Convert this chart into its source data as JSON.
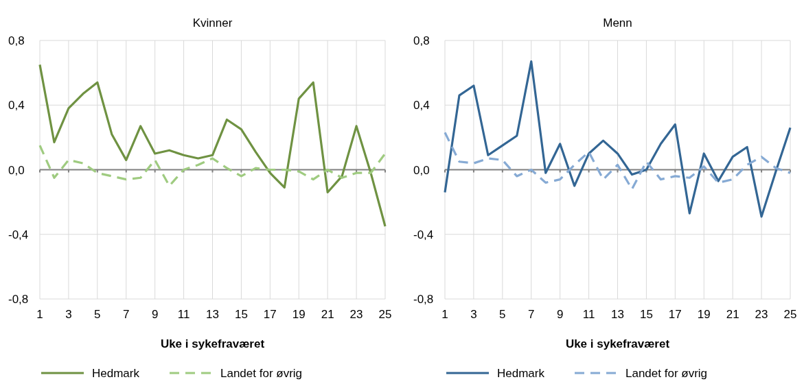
{
  "chart_data": [
    {
      "type": "line",
      "title": "Kvinner",
      "xlabel": "Uke i sykefraværet",
      "x": [
        1,
        2,
        3,
        4,
        5,
        6,
        7,
        8,
        9,
        10,
        11,
        12,
        13,
        14,
        15,
        16,
        17,
        18,
        19,
        20,
        21,
        22,
        23,
        24,
        25
      ],
      "xlim": [
        1,
        25
      ],
      "xticks": [
        1,
        3,
        5,
        7,
        9,
        11,
        13,
        15,
        17,
        19,
        21,
        23,
        25
      ],
      "ylim": [
        -0.8,
        0.8
      ],
      "yticks": [
        {
          "value": -0.8,
          "label": "-0,8"
        },
        {
          "value": -0.4,
          "label": "-0,4"
        },
        {
          "value": 0,
          "label": "0,0"
        },
        {
          "value": 0.4,
          "label": "0,4"
        },
        {
          "value": 0.8,
          "label": "0,8"
        }
      ],
      "grid": true,
      "legend": "bottom",
      "marker": "none",
      "series": [
        {
          "name": "Hedmark",
          "color": "#6f9242",
          "line_style": "solid",
          "values": [
            0.65,
            0.17,
            0.38,
            0.47,
            0.54,
            0.22,
            0.06,
            0.27,
            0.1,
            0.12,
            0.09,
            0.07,
            0.09,
            0.31,
            0.25,
            0.11,
            -0.02,
            -0.11,
            0.44,
            0.54,
            -0.14,
            -0.04,
            0.27,
            -0.02,
            -0.35
          ]
        },
        {
          "name": "Landet for øvrig",
          "color": "#9fcb80",
          "line_style": "dashed",
          "values": [
            0.15,
            -0.05,
            0.06,
            0.04,
            -0.02,
            -0.04,
            -0.06,
            -0.05,
            0.06,
            -0.1,
            0.0,
            0.03,
            0.07,
            0.01,
            -0.04,
            0.01,
            0.0,
            0.0,
            -0.01,
            -0.06,
            0.0,
            -0.05,
            -0.02,
            -0.02,
            0.1
          ]
        }
      ]
    },
    {
      "type": "line",
      "title": "Menn",
      "xlabel": "Uke i sykefraværet",
      "x": [
        1,
        2,
        3,
        4,
        5,
        6,
        7,
        8,
        9,
        10,
        11,
        12,
        13,
        14,
        15,
        16,
        17,
        18,
        19,
        20,
        21,
        22,
        23,
        24,
        25
      ],
      "xlim": [
        1,
        25
      ],
      "xticks": [
        1,
        3,
        5,
        7,
        9,
        11,
        13,
        15,
        17,
        19,
        21,
        23,
        25
      ],
      "ylim": [
        -0.8,
        0.8
      ],
      "yticks": [
        {
          "value": -0.8,
          "label": "-0,8"
        },
        {
          "value": -0.4,
          "label": "-0,4"
        },
        {
          "value": 0,
          "label": "0,0"
        },
        {
          "value": 0.4,
          "label": "0,4"
        },
        {
          "value": 0.8,
          "label": "0,8"
        }
      ],
      "grid": true,
      "legend": "bottom",
      "marker": "none",
      "series": [
        {
          "name": "Hedmark",
          "color": "#336694",
          "line_style": "solid",
          "values": [
            -0.14,
            0.46,
            0.52,
            0.09,
            0.15,
            0.21,
            0.67,
            -0.02,
            0.16,
            -0.1,
            0.1,
            0.18,
            0.1,
            -0.03,
            0.0,
            0.16,
            0.28,
            -0.27,
            0.1,
            -0.07,
            0.08,
            0.14,
            -0.29,
            -0.01,
            0.26
          ]
        },
        {
          "name": "Landet for øvrig",
          "color": "#86aad4",
          "line_style": "dashed",
          "values": [
            0.23,
            0.05,
            0.04,
            0.07,
            0.06,
            -0.04,
            0.0,
            -0.08,
            -0.06,
            0.03,
            0.11,
            -0.06,
            0.03,
            -0.12,
            0.05,
            -0.06,
            -0.04,
            -0.05,
            0.02,
            -0.08,
            -0.06,
            0.03,
            0.08,
            0.01,
            -0.02
          ]
        }
      ]
    }
  ]
}
